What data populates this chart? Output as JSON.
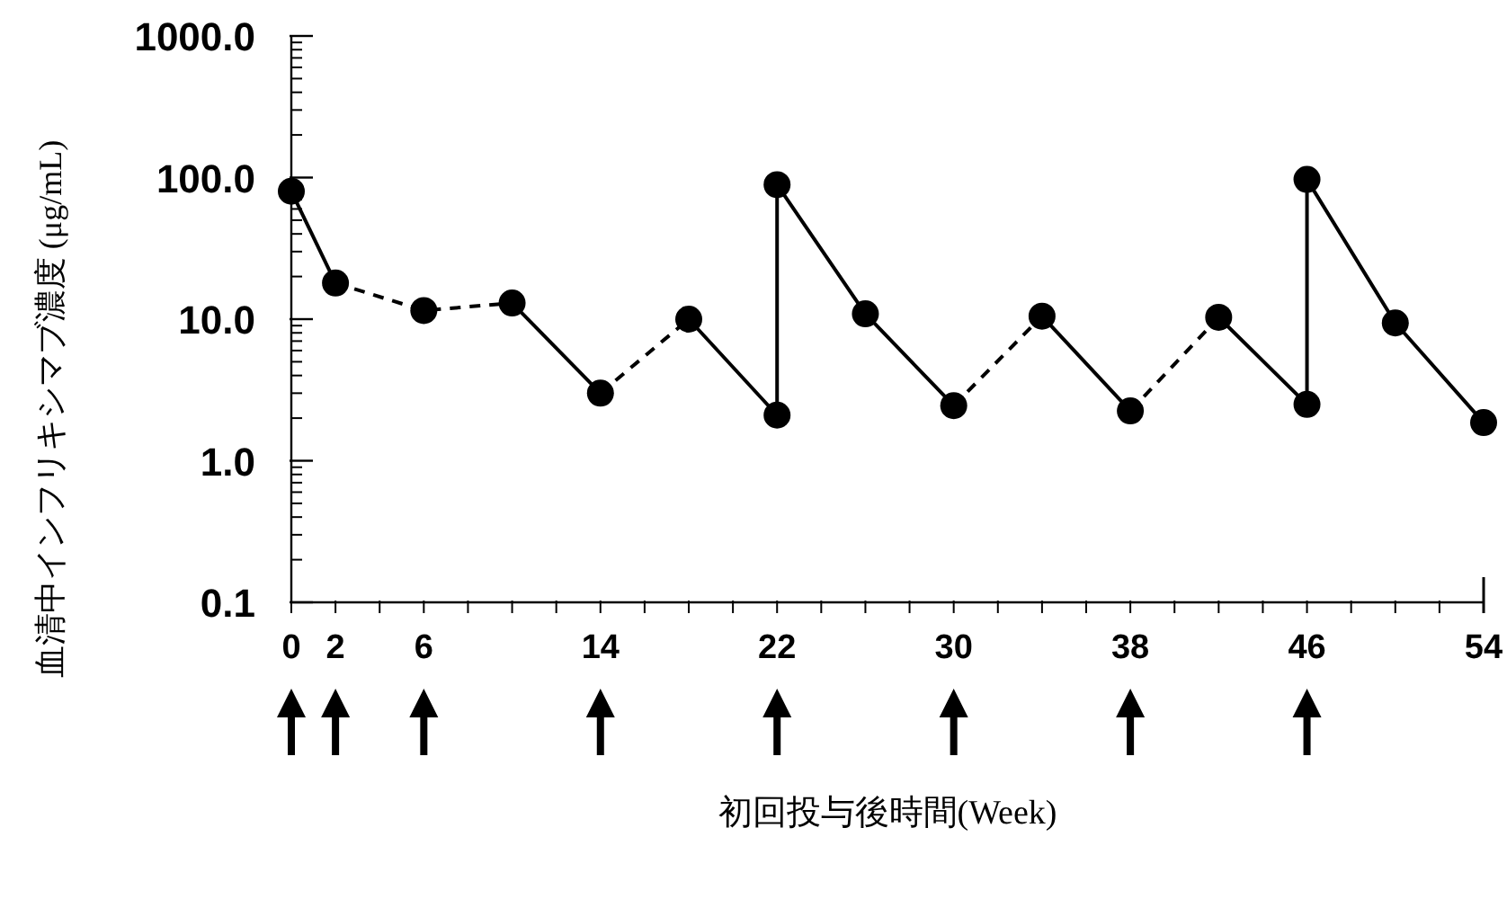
{
  "chart_data": {
    "type": "line",
    "xlabel": "初回投与後時間(Week)",
    "ylabel": "血清中インフリキシマブ濃度 (μg/mL)",
    "log": "y",
    "xlim": [
      0,
      54
    ],
    "ylim": [
      0.1,
      1000
    ],
    "xticks": [
      0,
      2,
      {
        "value": 4,
        "label": null
      },
      6,
      {
        "value": 8,
        "label": null
      },
      {
        "value": 10,
        "label": null
      },
      {
        "value": 12,
        "label": null
      },
      14,
      {
        "value": 16,
        "label": null
      },
      {
        "value": 18,
        "label": null
      },
      {
        "value": 20,
        "label": null
      },
      22,
      {
        "value": 24,
        "label": null
      },
      {
        "value": 26,
        "label": null
      },
      {
        "value": 28,
        "label": null
      },
      30,
      {
        "value": 32,
        "label": null
      },
      {
        "value": 34,
        "label": null
      },
      {
        "value": 36,
        "label": null
      },
      38,
      {
        "value": 40,
        "label": null
      },
      {
        "value": 42,
        "label": null
      },
      {
        "value": 44,
        "label": null
      },
      46,
      {
        "value": 48,
        "label": null
      },
      {
        "value": 50,
        "label": null
      },
      {
        "value": 52,
        "label": null
      },
      54
    ],
    "yticks": [
      {
        "value": 0.1,
        "label": "0.1"
      },
      {
        "value": 1,
        "label": "1.0"
      },
      {
        "value": 10,
        "label": "10.0"
      },
      {
        "value": 100,
        "label": "100.0"
      },
      {
        "value": 1000,
        "label": "1000.0"
      }
    ],
    "series": [
      {
        "color": "#000000",
        "line_style": "solid",
        "marker": "none",
        "x": [
          0,
          2
        ],
        "values": [
          80,
          18
        ]
      },
      {
        "color": "#000000",
        "line_style": "dashed",
        "marker": "none",
        "x": [
          2,
          6,
          10
        ],
        "values": [
          18,
          11.5,
          13
        ]
      },
      {
        "color": "#000000",
        "line_style": "solid",
        "marker": "none",
        "x": [
          10,
          14
        ],
        "values": [
          13,
          3
        ]
      },
      {
        "color": "#000000",
        "line_style": "dashed",
        "marker": "none",
        "x": [
          14,
          18
        ],
        "values": [
          3,
          10
        ]
      },
      {
        "color": "#000000",
        "line_style": "solid",
        "marker": "none",
        "x": [
          18,
          22,
          22,
          26,
          30
        ],
        "values": [
          10,
          2.1,
          89,
          10.9,
          2.45
        ]
      },
      {
        "color": "#000000",
        "line_style": "dashed",
        "marker": "none",
        "x": [
          30,
          34
        ],
        "values": [
          2.45,
          10.5
        ]
      },
      {
        "color": "#000000",
        "line_style": "solid",
        "marker": "none",
        "x": [
          34,
          38
        ],
        "values": [
          10.5,
          2.25
        ]
      },
      {
        "color": "#000000",
        "line_style": "dashed",
        "marker": "none",
        "x": [
          38,
          42
        ],
        "values": [
          2.25,
          10.3
        ]
      },
      {
        "color": "#000000",
        "line_style": "solid",
        "marker": "none",
        "x": [
          42,
          46,
          46,
          50,
          54
        ],
        "values": [
          10.3,
          2.5,
          97,
          9.4,
          1.86
        ]
      },
      {
        "type": "scatter",
        "color": "#000000",
        "x": [
          0,
          2,
          6,
          10,
          14,
          18,
          22,
          22,
          26,
          30,
          34,
          38,
          42,
          46,
          46,
          50,
          54
        ],
        "values": [
          80,
          18,
          11.5,
          13,
          3,
          10,
          2.1,
          89,
          10.9,
          2.45,
          10.5,
          2.25,
          10.3,
          2.5,
          97,
          9.4,
          1.86
        ]
      }
    ]
  }
}
